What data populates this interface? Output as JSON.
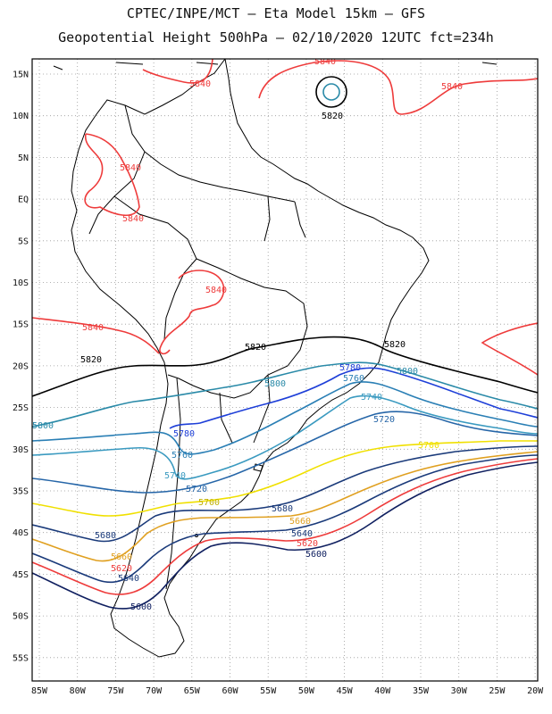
{
  "header": {
    "line1": "CPTEC/INPE/MCT –  Eta Model 15km – GFS",
    "line2": "Geopotential Height 500hPa – 02/10/2020 12UTC fct=234h"
  },
  "axes": {
    "lat_ticks": [
      "15N",
      "10N",
      "5N",
      "EQ",
      "5S",
      "10S",
      "15S",
      "20S",
      "25S",
      "30S",
      "35S",
      "40S",
      "45S",
      "50S",
      "55S"
    ],
    "lon_ticks": [
      "85W",
      "80W",
      "75W",
      "70W",
      "65W",
      "60W",
      "55W",
      "50W",
      "45W",
      "40W",
      "35W",
      "30W",
      "25W",
      "20W"
    ]
  },
  "colors": {
    "c5840": "#ee3b3b",
    "c5820": "#000000",
    "c5800": "#2a8aa8",
    "c5780": "#1e3fd8",
    "c5760": "#2a7fb5",
    "c5740": "#3a9ac0",
    "c5720": "#2666a8",
    "c5700": "#f0e000",
    "c5680": "#1a3a7a",
    "c5660": "#e0a020",
    "c5640": "#1a3a7a",
    "c5620": "#ee3b3b",
    "c5600": "#102060",
    "coast": "#000000",
    "grid": "#999999"
  },
  "contour_labels": {
    "v5840": "5840",
    "v5820": "5820",
    "v5800": "5800",
    "v5780": "5780",
    "v5760": "5760",
    "v5740": "5740",
    "v5720": "5720",
    "v5700": "5700",
    "v5680": "5680",
    "v5660": "5660",
    "v5640": "5640",
    "v5620": "5620",
    "v5600": "5600"
  }
}
